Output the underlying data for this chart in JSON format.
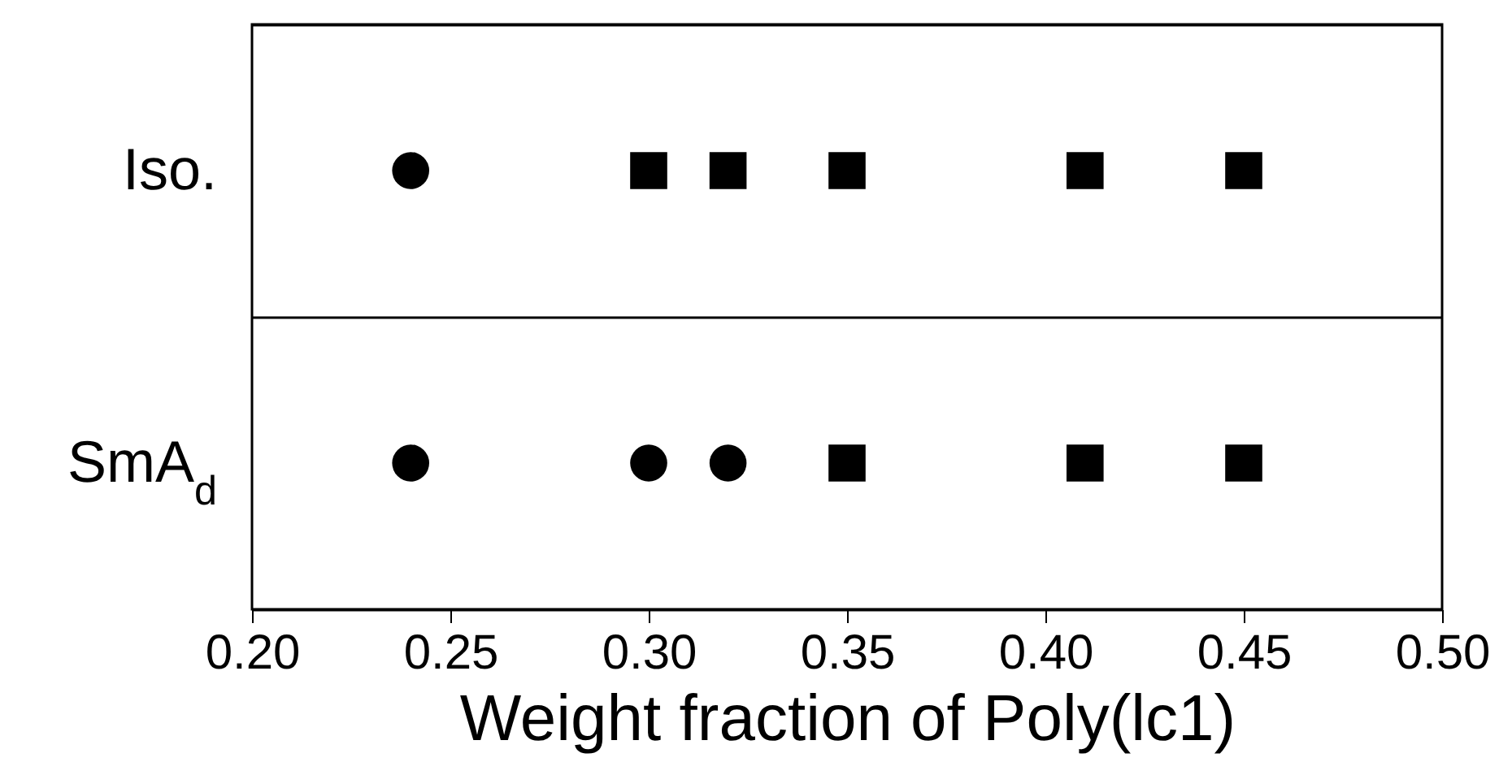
{
  "chart_data": {
    "type": "scatter",
    "orientation": "horizontal",
    "xlabel": "Weight fraction of Poly(lc1)",
    "categories": [
      "Iso.",
      "SmA$_{d}$"
    ],
    "series": [
      {
        "color": "#000000",
        "marker": "circle",
        "values": [
          0.24,
          0.24
        ]
      },
      {
        "color": "#000000",
        "marker": "circle",
        "values": [
          null,
          0.3
        ]
      },
      {
        "color": "#000000",
        "marker": "circle",
        "values": [
          null,
          0.32
        ]
      },
      {
        "color": "#000000",
        "marker": "square",
        "values": [
          0.3,
          null
        ]
      },
      {
        "color": "#000000",
        "marker": "square",
        "values": [
          0.32,
          null
        ]
      },
      {
        "color": "#000000",
        "marker": "square",
        "values": [
          0.35,
          0.35
        ]
      },
      {
        "color": "#000000",
        "marker": "square",
        "values": [
          0.41,
          0.41
        ]
      },
      {
        "color": "#000000",
        "marker": "square",
        "values": [
          0.45,
          0.45
        ]
      }
    ],
    "xlim": [
      0.2,
      0.5
    ],
    "xticks": [
      {
        "value": 0.2,
        "label": "0.20"
      },
      {
        "value": 0.25,
        "label": "0.25"
      },
      {
        "value": 0.3,
        "label": "0.30"
      },
      {
        "value": 0.35,
        "label": "0.35"
      },
      {
        "value": 0.4,
        "label": "0.40"
      },
      {
        "value": 0.45,
        "label": "0.45"
      },
      {
        "value": 0.5,
        "label": "0.50"
      }
    ],
    "grid": "y"
  }
}
